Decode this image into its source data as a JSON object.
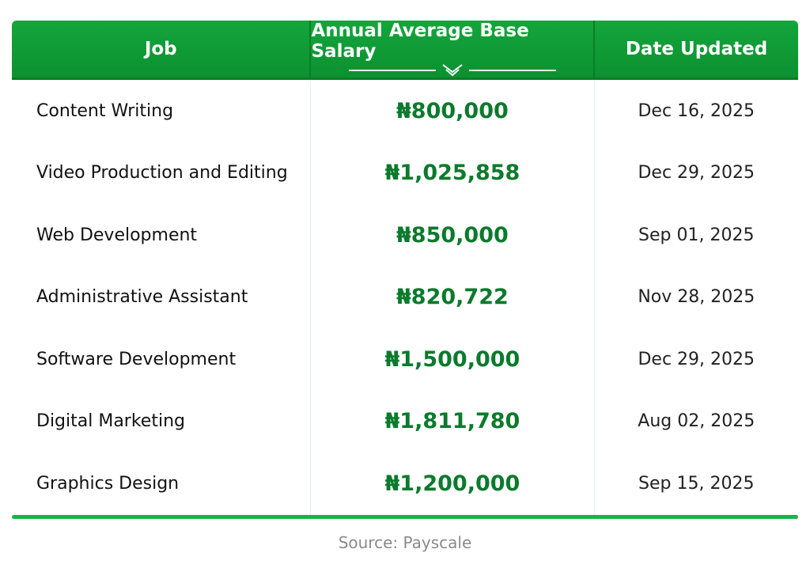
{
  "chart_data": {
    "type": "table",
    "columns": [
      "Job",
      "Annual Average Base Salary",
      "Date Updated"
    ],
    "rows": [
      {
        "job": "Content Writing",
        "salary": "₦800,000",
        "date": "Dec 16, 2025"
      },
      {
        "job": "Video Production and Editing",
        "salary": "₦1,025,858",
        "date": "Dec 29, 2025"
      },
      {
        "job": "Web Development",
        "salary": "₦850,000",
        "date": "Sep 01, 2025"
      },
      {
        "job": "Administrative Assistant",
        "salary": "₦820,722",
        "date": "Nov 28, 2025"
      },
      {
        "job": "Software Development",
        "salary": "₦1,500,000",
        "date": "Dec 29, 2025"
      },
      {
        "job": "Digital Marketing",
        "salary": "₦1,811,780",
        "date": "Aug 02, 2025"
      },
      {
        "job": "Graphics Design",
        "salary": "₦1,200,000",
        "date": "Sep 15, 2025"
      }
    ],
    "colors": {
      "header": "#0f9a34",
      "salary_text": "#0b7a2c",
      "accent_line": "#14b548"
    }
  },
  "source": "Source: Payscale",
  "icons": {
    "sort": "double-chevron-down-icon"
  }
}
